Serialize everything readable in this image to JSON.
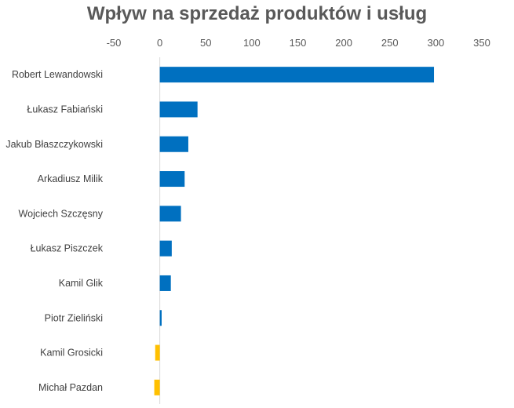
{
  "chart_data": {
    "type": "bar",
    "orientation": "horizontal",
    "title": "Wpływ na sprzedaż produktów i usług",
    "categories": [
      "Robert Lewandowski",
      "Łukasz Fabiański",
      "Jakub Błaszczykowski",
      "Arkadiusz Milik",
      "Wojciech Szczęsny",
      "Łukasz Piszczek",
      "Kamil Glik",
      "Piotr Zieliński",
      "Kamil Grosicki",
      "Michał Pazdan"
    ],
    "values": [
      298,
      41,
      31,
      27,
      23,
      13,
      12,
      2,
      -5,
      -6
    ],
    "xlim": [
      -50,
      350
    ],
    "xticks": [
      "-50",
      "0",
      "50",
      "100",
      "150",
      "200",
      "250",
      "300",
      "350"
    ],
    "xaxis_position": "top",
    "grid": false,
    "colors": {
      "positive": "#0070c0",
      "negative": "#ffc000"
    }
  }
}
